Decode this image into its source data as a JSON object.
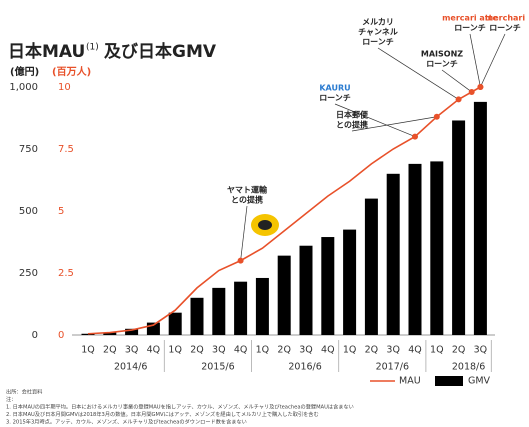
{
  "chart_data": {
    "type": "bar",
    "title": "日本MAU",
    "title_note": "(1)",
    "title_rest": "及び日本GMV",
    "y_label": "(億円)",
    "y2_label": "(百万人)",
    "categories": [
      "1Q",
      "2Q",
      "3Q",
      "4Q",
      "1Q",
      "2Q",
      "3Q",
      "4Q",
      "1Q",
      "2Q",
      "3Q",
      "4Q",
      "1Q",
      "2Q",
      "3Q",
      "4Q",
      "1Q",
      "2Q",
      "3Q"
    ],
    "year_labels": [
      "2014/6",
      "2015/6",
      "2016/6",
      "2017/6",
      "2018/6"
    ],
    "series": [
      {
        "name": "GMV",
        "type": "bar",
        "color": "#000000",
        "values": [
          5,
          10,
          25,
          50,
          90,
          150,
          190,
          215,
          230,
          320,
          360,
          395,
          425,
          550,
          650,
          690,
          700,
          865,
          940
        ]
      },
      {
        "name": "MAU",
        "type": "line",
        "axis": "y2",
        "color": "#e8512a",
        "values": [
          0.05,
          0.1,
          0.2,
          0.4,
          1.0,
          1.9,
          2.6,
          3.0,
          3.5,
          4.2,
          4.9,
          5.6,
          6.2,
          6.9,
          7.5,
          8.0,
          8.8,
          9.5,
          10.0
        ]
      }
    ],
    "ylim": [
      0,
      1000
    ],
    "yticks": [
      0,
      250,
      500,
      {
        "value": 750,
        "label": "750"
      },
      {
        "value": 1000,
        "label": "1,000"
      }
    ],
    "y2lim": [
      0,
      10
    ],
    "y2ticks": [
      0,
      2.5,
      5,
      7.5,
      10
    ],
    "annotations": [
      {
        "lines": [
          "ヤマト運輸",
          "との提携"
        ]
      },
      {
        "lines": [
          "KAURU",
          "ローンチ"
        ]
      },
      {
        "lines": [
          "日本郵便",
          "との提携"
        ]
      },
      {
        "lines": [
          "メルカリ",
          "チャンネル",
          "ローンチ"
        ]
      },
      {
        "lines": [
          "MAISONZ",
          "ローンチ"
        ]
      },
      {
        "lines": [
          "mercari atte",
          "ローンチ"
        ]
      },
      {
        "lines": [
          "merchari",
          "ローンチ"
        ]
      }
    ],
    "footnotes": [
      "出所：会社資料",
      "注：",
      "1. 日本MAUの四半期平均。日本におけるメルカリ事業の登録MAUを指しアッテ、カウル、メゾンズ、メルチャリ及びteacheaの登録MAUは含まない",
      "2. 日本MAU及び日本月間GMVは2018年3月の数値。日本月間GMVにはアッテ、メゾンズを経由してメルカリ上で購入した取引を含む",
      "3. 2015年3月時点。アッテ、カウル、メゾンズ、メルチャリ及びteacheaのダウンロード数を含まない"
    ]
  }
}
